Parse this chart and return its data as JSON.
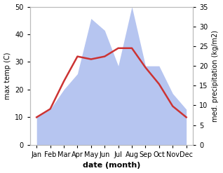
{
  "months": [
    "Jan",
    "Feb",
    "Mar",
    "Apr",
    "May",
    "Jun",
    "Jul",
    "Aug",
    "Sep",
    "Oct",
    "Nov",
    "Dec"
  ],
  "temperature": [
    10,
    13,
    23,
    32,
    31,
    32,
    35,
    35,
    28,
    22,
    14,
    10
  ],
  "precipitation_right": [
    7,
    9,
    14,
    18,
    32,
    29,
    20,
    35,
    20,
    20,
    13,
    9
  ],
  "temp_ylim": [
    0,
    50
  ],
  "precip_ylim": [
    0,
    35
  ],
  "temp_color": "#cc3333",
  "precip_fill_color": "#aabbee",
  "precip_fill_alpha": 0.85,
  "ylabel_left": "max temp (C)",
  "ylabel_right": "med. precipitation (kg/m2)",
  "xlabel": "date (month)",
  "tick_fontsize": 7,
  "label_fontsize": 7,
  "xlabel_fontsize": 8,
  "spine_color": "#bbbbbb",
  "temp_linewidth": 1.8,
  "fig_width": 3.18,
  "fig_height": 2.47,
  "dpi": 100
}
